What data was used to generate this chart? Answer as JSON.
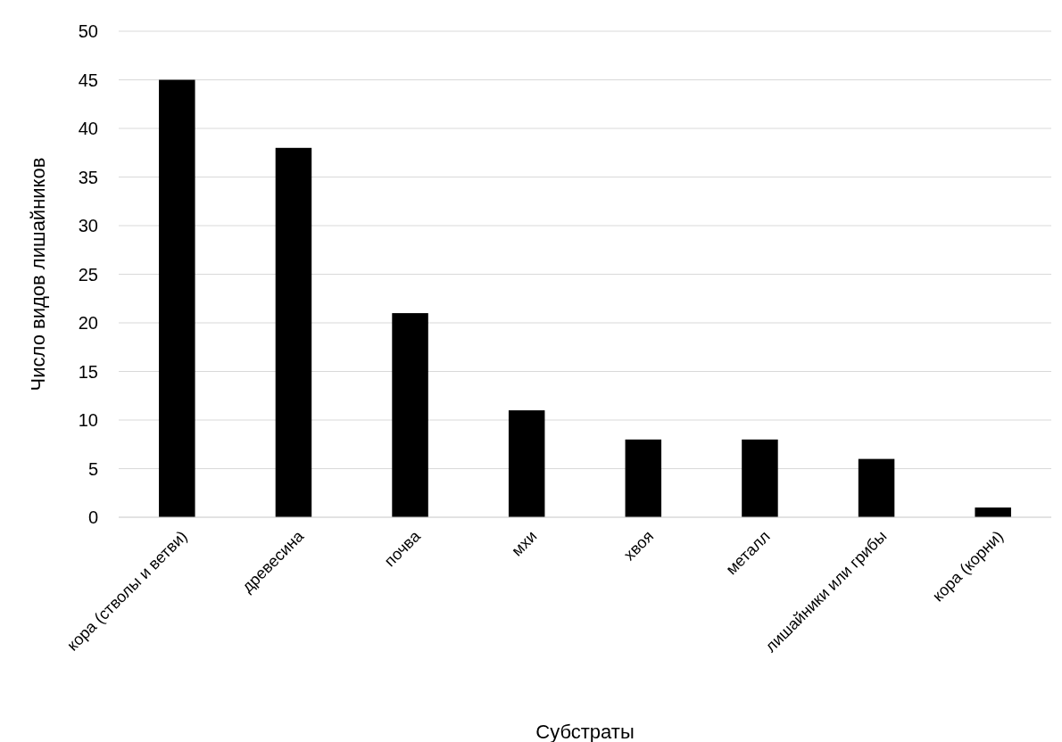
{
  "chart_data": {
    "type": "bar",
    "xlabel": "Субстраты",
    "ylabel": "Число видов лишайников",
    "categories": [
      "кора (стволы и ветви)",
      "древесина",
      "почва",
      "мхи",
      "хвоя",
      "металл",
      "лишайники или грибы",
      "кора (корни)"
    ],
    "values": [
      45,
      38,
      21,
      11,
      8,
      8,
      6,
      1
    ],
    "color": "#000000",
    "ylim": [
      0,
      50
    ],
    "yticks": [
      0,
      5,
      10,
      15,
      20,
      25,
      30,
      35,
      40,
      45,
      50
    ],
    "grid": "y"
  }
}
